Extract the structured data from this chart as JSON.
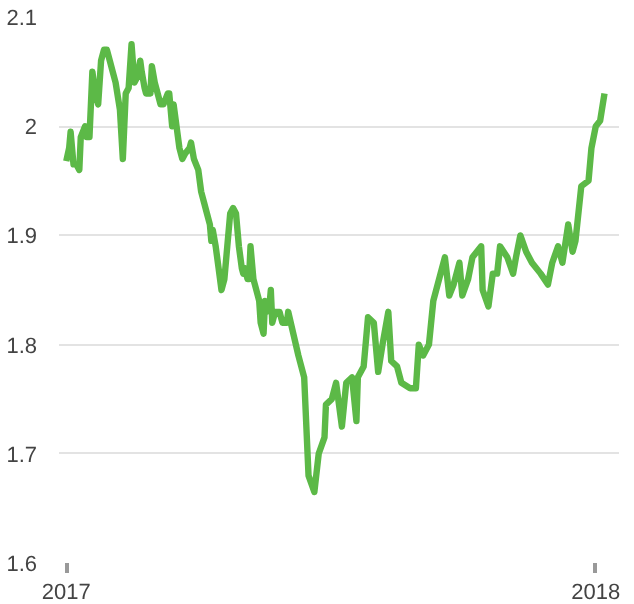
{
  "chart_data": {
    "type": "line",
    "x": [
      "2017-01-01",
      "2017-01-03",
      "2017-01-04",
      "2017-01-06",
      "2017-01-08",
      "2017-01-10",
      "2017-01-11",
      "2017-01-14",
      "2017-01-15",
      "2017-01-17",
      "2017-01-19",
      "2017-01-21",
      "2017-01-23",
      "2017-01-25",
      "2017-01-27",
      "2017-01-29",
      "2017-01-31",
      "2017-02-02",
      "2017-02-04",
      "2017-02-07",
      "2017-02-09",
      "2017-02-10",
      "2017-02-11",
      "2017-02-13",
      "2017-02-15",
      "2017-02-17",
      "2017-02-19",
      "2017-02-21",
      "2017-02-22",
      "2017-02-24",
      "2017-02-25",
      "2017-02-28",
      "2017-03-01",
      "2017-03-03",
      "2017-03-05",
      "2017-03-07",
      "2017-03-09",
      "2017-03-12",
      "2017-03-13",
      "2017-03-15",
      "2017-03-16",
      "2017-03-18",
      "2017-03-20",
      "2017-03-22",
      "2017-03-24",
      "2017-03-27",
      "2017-03-28",
      "2017-03-30",
      "2017-04-02",
      "2017-04-04",
      "2017-04-06",
      "2017-04-08",
      "2017-04-10",
      "2017-04-11",
      "2017-04-12",
      "2017-04-14",
      "2017-04-16",
      "2017-04-18",
      "2017-04-20",
      "2017-04-22",
      "2017-04-24",
      "2017-04-26",
      "2017-04-28",
      "2017-04-30",
      "2017-05-02",
      "2017-05-03",
      "2017-05-04",
      "2017-05-06",
      "2017-05-07",
      "2017-05-08",
      "2017-05-10",
      "2017-05-11",
      "2017-05-14",
      "2017-05-15",
      "2017-05-17",
      "2017-05-18",
      "2017-05-19",
      "2017-05-21",
      "2017-05-22",
      "2017-05-23",
      "2017-05-25",
      "2017-05-28",
      "2017-05-30",
      "2017-06-02",
      "2017-06-03",
      "2017-06-10",
      "2017-06-14",
      "2017-06-17",
      "2017-06-21",
      "2017-06-24",
      "2017-06-28",
      "2017-06-29",
      "2017-07-03",
      "2017-07-06",
      "2017-07-10",
      "2017-07-13",
      "2017-07-17",
      "2017-07-20",
      "2017-07-21",
      "2017-07-25",
      "2017-07-28",
      "2017-08-01",
      "2017-08-04",
      "2017-08-07",
      "2017-08-11",
      "2017-08-13",
      "2017-08-17",
      "2017-08-20",
      "2017-08-26",
      "2017-08-30",
      "2017-09-01",
      "2017-09-04",
      "2017-09-08",
      "2017-09-11",
      "2017-09-16",
      "2017-09-19",
      "2017-09-22",
      "2017-09-25",
      "2017-09-29",
      "2017-10-01",
      "2017-10-05",
      "2017-10-08",
      "2017-10-14",
      "2017-10-15",
      "2017-10-19",
      "2017-10-22",
      "2017-10-25",
      "2017-10-27",
      "2017-11-01",
      "2017-11-05",
      "2017-11-07",
      "2017-11-10",
      "2017-11-14",
      "2017-11-18",
      "2017-11-24",
      "2017-11-29",
      "2017-12-02",
      "2017-12-06",
      "2017-12-09",
      "2017-12-13",
      "2017-12-16",
      "2017-12-18",
      "2017-12-22",
      "2017-12-27",
      "2017-12-29",
      "2018-01-01",
      "2018-01-04",
      "2018-01-07"
    ],
    "series": [
      {
        "color": "#5cb947",
        "values": [
          1.968,
          1.98,
          1.995,
          1.965,
          1.965,
          1.96,
          1.99,
          2.0,
          1.99,
          1.99,
          2.05,
          2.03,
          2.02,
          2.06,
          2.07,
          2.07,
          2.06,
          2.05,
          2.04,
          2.015,
          1.97,
          2.0,
          2.03,
          2.035,
          2.075,
          2.04,
          2.045,
          2.06,
          2.05,
          2.035,
          2.03,
          2.03,
          2.055,
          2.04,
          2.03,
          2.02,
          2.02,
          2.03,
          2.03,
          2.0,
          2.02,
          2.0,
          1.98,
          1.97,
          1.975,
          1.98,
          1.985,
          1.97,
          1.96,
          1.94,
          1.93,
          1.92,
          1.91,
          1.895,
          1.905,
          1.89,
          1.87,
          1.85,
          1.86,
          1.89,
          1.92,
          1.925,
          1.92,
          1.89,
          1.87,
          1.865,
          1.87,
          1.86,
          1.86,
          1.89,
          1.86,
          1.855,
          1.84,
          1.82,
          1.81,
          1.84,
          1.83,
          1.835,
          1.85,
          1.82,
          1.83,
          1.83,
          1.82,
          1.82,
          1.83,
          1.79,
          1.77,
          1.68,
          1.665,
          1.7,
          1.715,
          1.745,
          1.75,
          1.765,
          1.725,
          1.765,
          1.77,
          1.73,
          1.77,
          1.78,
          1.825,
          1.82,
          1.775,
          1.8,
          1.83,
          1.785,
          1.78,
          1.765,
          1.76,
          1.76,
          1.8,
          1.79,
          1.8,
          1.84,
          1.865,
          1.88,
          1.845,
          1.855,
          1.875,
          1.845,
          1.86,
          1.88,
          1.89,
          1.85,
          1.835,
          1.865,
          1.865,
          1.89,
          1.88,
          1.865,
          1.88,
          1.9,
          1.885,
          1.875,
          1.865,
          1.855,
          1.875,
          1.89,
          1.875,
          1.91,
          1.885,
          1.895,
          1.945,
          1.95,
          1.98,
          2.0,
          2.005,
          2.03
        ]
      }
    ],
    "xlim": [
      "2016-12-27",
      "2018-01-17"
    ],
    "xticks": [
      {
        "value": "2017-01-01",
        "label": "2017"
      },
      {
        "value": "2018-01-01",
        "label": "2018"
      }
    ],
    "ylim": [
      1.6,
      2.1
    ],
    "yticks": [
      1.6,
      1.7,
      1.8,
      1.9,
      2,
      2.1
    ],
    "grid": "y",
    "line_style": "solid"
  }
}
